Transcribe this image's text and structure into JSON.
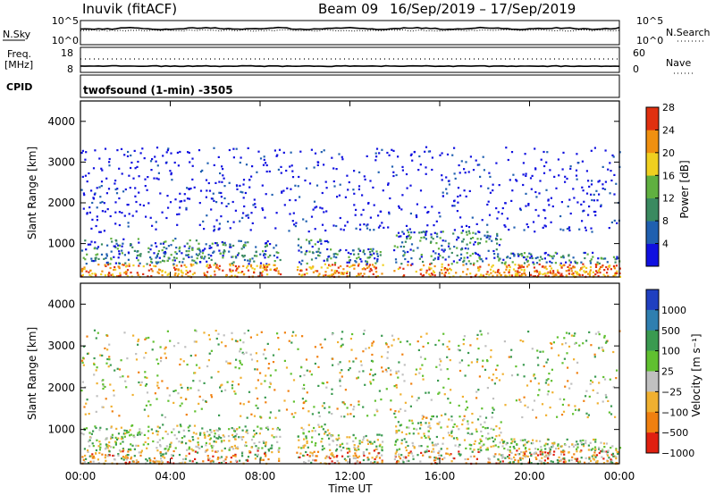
{
  "header": {
    "station": "Inuvik (fitACF)",
    "beam": "Beam 09",
    "date_range": "16/Sep/2019 – 17/Sep/2019"
  },
  "ctrl_panels": {
    "nsky_label": "N.Sky",
    "nsky_ticks": [
      "10^5",
      "10^0"
    ],
    "nsearch_label": "N.Search",
    "nsearch_ticks": [
      "10^5",
      "10^0"
    ],
    "freq_label_line1": "Freq.",
    "freq_label_line2": "[MHz]",
    "freq_ticks": [
      "18",
      "8"
    ],
    "nave_label": "Nave",
    "nave_ticks": [
      "60",
      "0"
    ],
    "cpid_label": "CPID",
    "cpid_value": "twofsound (1-min) -3505"
  },
  "chart_data": [
    {
      "type": "heatmap",
      "name": "power",
      "ylabel": "Slant Range [km]",
      "ylim": [
        180,
        4500
      ],
      "yticks": [
        "1000",
        "2000",
        "3000",
        "4000"
      ],
      "colorbar_label": "Power [dB]",
      "colorbar_ticks": [
        "4",
        "8",
        "12",
        "16",
        "20",
        "24",
        "28"
      ],
      "colors": [
        "#1010e0",
        "#2060b0",
        "#3a8a60",
        "#60b040",
        "#f0d020",
        "#f09010",
        "#e03010"
      ]
    },
    {
      "type": "heatmap",
      "name": "velocity",
      "ylabel": "Slant Range [km]",
      "ylim": [
        180,
        4500
      ],
      "yticks": [
        "1000",
        "2000",
        "3000",
        "4000"
      ],
      "colorbar_label": "Velocity [m s⁻¹]",
      "colorbar_ticks": [
        "1000",
        "500",
        "100",
        "25",
        "−25",
        "−100",
        "−500",
        "−1000"
      ],
      "colors": [
        "#2040c0",
        "#2f7fb0",
        "#3a9a50",
        "#60c030",
        "#c0c0c0",
        "#f0b030",
        "#f08010",
        "#e02010"
      ]
    }
  ],
  "xaxis": {
    "ticks": [
      "00:00",
      "04:00",
      "08:00",
      "12:00",
      "16:00",
      "20:00",
      "00:00"
    ],
    "label": "Time UT"
  }
}
